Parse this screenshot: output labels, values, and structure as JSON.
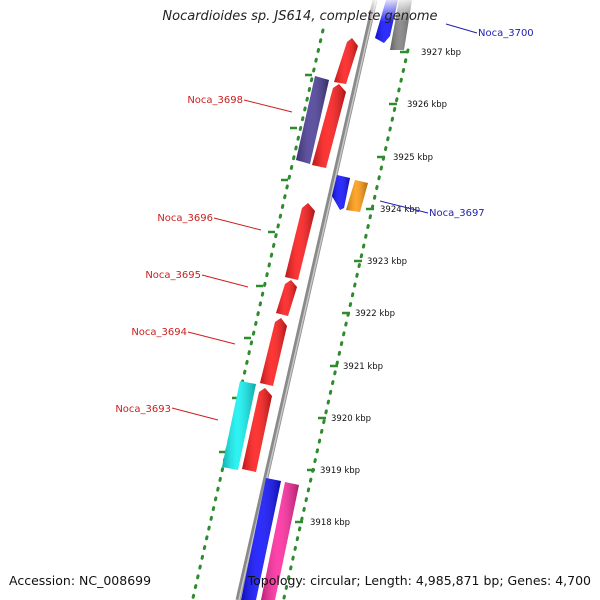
{
  "title": "Nocardioides sp. JS614, complete genome",
  "accession": "Accession: NC_008699",
  "topology": "Topology: circular; Length: 4,985,871 bp; Genes: 4,700",
  "kbp_ticks": [
    {
      "label": "3927 kbp",
      "kbp": 3927
    },
    {
      "label": "3926 kbp",
      "kbp": 3926
    },
    {
      "label": "3925 kbp",
      "kbp": 3925
    },
    {
      "label": "3924 kbp",
      "kbp": 3924
    },
    {
      "label": "3923 kbp",
      "kbp": 3923
    },
    {
      "label": "3922 kbp",
      "kbp": 3922
    },
    {
      "label": "3921 kbp",
      "kbp": 3921
    },
    {
      "label": "3920 kbp",
      "kbp": 3920
    },
    {
      "label": "3919 kbp",
      "kbp": 3919
    },
    {
      "label": "3918 kbp",
      "kbp": 3918
    }
  ],
  "gene_labels": [
    {
      "label": "Noca_3700",
      "color": "#1f1fb0",
      "gene": "noca-3700"
    },
    {
      "label": "Noca_3698",
      "color": "#cc1f1f",
      "gene": "noca-3698"
    },
    {
      "label": "Noca_3697",
      "color": "#1f1fb0",
      "gene": "noca-3697"
    },
    {
      "label": "Noca_3696",
      "color": "#cc1f1f",
      "gene": "noca-3696"
    },
    {
      "label": "Noca_3695",
      "color": "#cc1f1f",
      "gene": "noca-3695"
    },
    {
      "label": "Noca_3694",
      "color": "#cc1f1f",
      "gene": "noca-3694"
    },
    {
      "label": "Noca_3693",
      "color": "#cc1f1f",
      "gene": "noca-3693"
    }
  ],
  "colors": {
    "backbone": "#8a8a8a",
    "gc_dots": "#2e8b2e",
    "red": "#ff1a1a",
    "blue": "#1010ff",
    "navy": "#4a3d96",
    "cyan": "#11f2f2",
    "orange": "#ff9a10",
    "magenta": "#ff2aa0",
    "gray": "#808080"
  }
}
